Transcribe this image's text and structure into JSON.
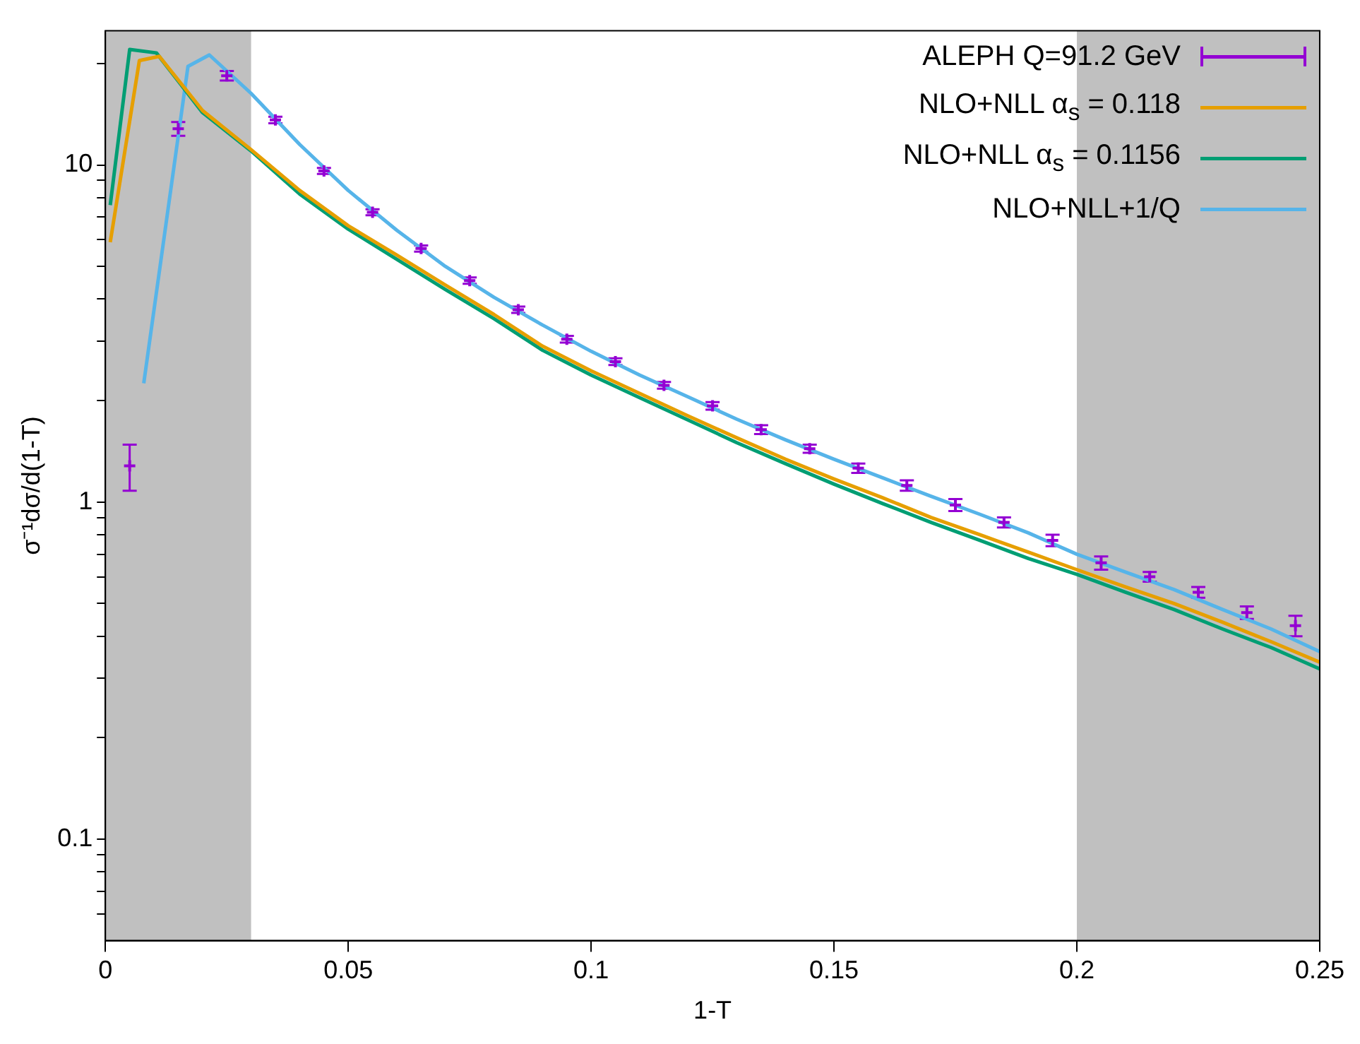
{
  "chart_data": {
    "type": "line",
    "xlabel": "1-T",
    "ylabel": "σ⁻¹dσ/d(1-T)",
    "log": "y",
    "xlim": [
      0,
      0.25
    ],
    "xticks": [
      0,
      0.05,
      0.1,
      0.15,
      0.2,
      0.25
    ],
    "ylim": [
      0.05,
      25
    ],
    "yticks": [
      {
        "value": 0.06,
        "label": null
      },
      {
        "value": 0.07,
        "label": null
      },
      {
        "value": 0.08,
        "label": null
      },
      {
        "value": 0.09,
        "label": null
      },
      0.1,
      {
        "value": 0.2,
        "label": null
      },
      {
        "value": 0.3,
        "label": null
      },
      {
        "value": 0.4,
        "label": null
      },
      {
        "value": 0.5,
        "label": null
      },
      {
        "value": 0.6,
        "label": null
      },
      {
        "value": 0.7,
        "label": null
      },
      {
        "value": 0.8,
        "label": null
      },
      {
        "value": 0.9,
        "label": null
      },
      1,
      {
        "value": 2,
        "label": null
      },
      {
        "value": 3,
        "label": null
      },
      {
        "value": 4,
        "label": null
      },
      {
        "value": 5,
        "label": null
      },
      {
        "value": 6,
        "label": null
      },
      {
        "value": 7,
        "label": null
      },
      {
        "value": 8,
        "label": null
      },
      {
        "value": 9,
        "label": null
      },
      10,
      {
        "value": 20,
        "label": null
      }
    ],
    "grid": false,
    "legend": "top right",
    "bands": [
      {
        "axis": "x",
        "from": 0,
        "to": 0.03,
        "color": "#c0c0c0"
      },
      {
        "axis": "x",
        "from": 0.2,
        "to": 0.25,
        "color": "#c0c0c0"
      }
    ],
    "series": [
      {
        "name": "ALEPH Q=91.2 GeV",
        "type": "scatter",
        "marker": "cross",
        "color": "#9400d3",
        "x": [
          0.005,
          0.015,
          0.025,
          0.035,
          0.045,
          0.055,
          0.065,
          0.075,
          0.085,
          0.095,
          0.105,
          0.115,
          0.125,
          0.135,
          0.145,
          0.155,
          0.165,
          0.175,
          0.185,
          0.195,
          0.205,
          0.215,
          0.225,
          0.235,
          0.245
        ],
        "values": [
          1.28,
          12.8,
          18.4,
          13.6,
          9.6,
          7.24,
          5.65,
          4.54,
          3.72,
          3.04,
          2.61,
          2.22,
          1.93,
          1.64,
          1.44,
          1.26,
          1.12,
          0.98,
          0.87,
          0.77,
          0.66,
          0.6,
          0.54,
          0.47,
          0.43
        ],
        "errors": [
          0.2,
          0.6,
          0.6,
          0.3,
          0.2,
          0.15,
          0.12,
          0.1,
          0.08,
          0.07,
          0.06,
          0.05,
          0.05,
          0.05,
          0.04,
          0.04,
          0.04,
          0.04,
          0.03,
          0.03,
          0.03,
          0.02,
          0.02,
          0.02,
          0.03
        ]
      },
      {
        "name": "NLO+NLL α$_{s}$ = 0.118",
        "type": "line",
        "color": "#e69f00",
        "x": [
          0.001,
          0.007,
          0.0111,
          0.02,
          0.03,
          0.04,
          0.05,
          0.06,
          0.07,
          0.08,
          0.09,
          0.1,
          0.11,
          0.12,
          0.13,
          0.14,
          0.15,
          0.16,
          0.17,
          0.18,
          0.19,
          0.2,
          0.21,
          0.22,
          0.23,
          0.24,
          0.25
        ],
        "values": [
          5.9,
          20.4,
          21,
          14.5,
          11.1,
          8.4,
          6.6,
          5.4,
          4.4,
          3.6,
          2.9,
          2.45,
          2.1,
          1.8,
          1.55,
          1.34,
          1.17,
          1.03,
          0.9,
          0.8,
          0.71,
          0.63,
          0.56,
          0.5,
          0.44,
          0.385,
          0.335
        ]
      },
      {
        "name": "NLO+NLL α$_{s}$ = 0.1156",
        "type": "line",
        "color": "#009e73",
        "x": [
          0.001,
          0.005,
          0.0105,
          0.02,
          0.03,
          0.04,
          0.05,
          0.06,
          0.07,
          0.08,
          0.09,
          0.1,
          0.11,
          0.12,
          0.13,
          0.14,
          0.15,
          0.16,
          0.17,
          0.18,
          0.19,
          0.2,
          0.21,
          0.22,
          0.23,
          0.24,
          0.25
        ],
        "values": [
          7.6,
          22,
          21.5,
          14.3,
          11,
          8.2,
          6.45,
          5.25,
          4.27,
          3.5,
          2.82,
          2.38,
          2.04,
          1.75,
          1.5,
          1.3,
          1.13,
          0.99,
          0.87,
          0.77,
          0.68,
          0.61,
          0.54,
          0.48,
          0.42,
          0.37,
          0.32
        ]
      },
      {
        "name": "NLO+NLL+1/Q",
        "type": "line",
        "color": "#56b4e9",
        "x": [
          0.0079,
          0.017,
          0.0214,
          0.03,
          0.04,
          0.05,
          0.06,
          0.07,
          0.08,
          0.09,
          0.1,
          0.11,
          0.12,
          0.13,
          0.14,
          0.15,
          0.16,
          0.17,
          0.18,
          0.19,
          0.2,
          0.21,
          0.22,
          0.23,
          0.24,
          0.25
        ],
        "values": [
          2.25,
          19.6,
          21.2,
          16.3,
          11.5,
          8.4,
          6.4,
          5,
          4.05,
          3.35,
          2.8,
          2.38,
          2.05,
          1.76,
          1.53,
          1.34,
          1.18,
          1.04,
          0.92,
          0.81,
          0.7,
          0.62,
          0.55,
          0.48,
          0.42,
          0.36
        ]
      }
    ]
  }
}
